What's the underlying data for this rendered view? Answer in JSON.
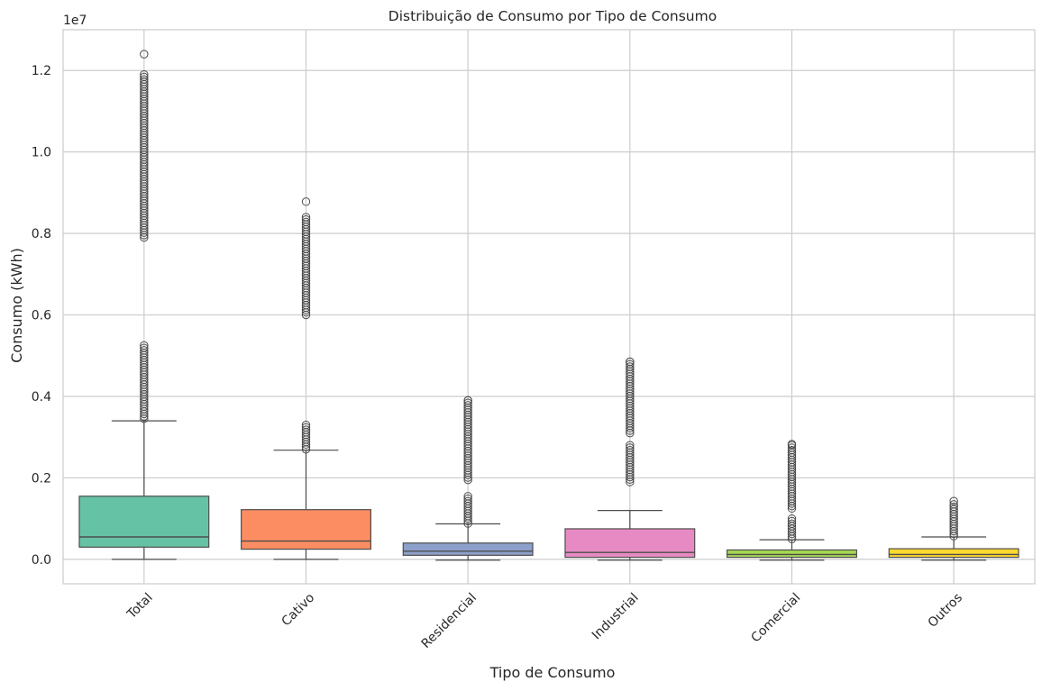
{
  "chart_data": {
    "type": "box",
    "title": "Distribuição de Consumo por Tipo de Consumo",
    "xlabel": "Tipo de Consumo",
    "ylabel": "Consumo (kWh)",
    "y_offset_label": "1e7",
    "ylim": [
      -0.06,
      1.3
    ],
    "y_scale_factor": 10000000,
    "y_ticks": [
      0.0,
      0.2,
      0.4,
      0.6,
      0.8,
      1.0,
      1.2
    ],
    "y_tick_labels": [
      "0.0",
      "0.2",
      "0.4",
      "0.6",
      "0.8",
      "1.0",
      "1.2"
    ],
    "grid": true,
    "x_tick_rotation": 45,
    "categories": [
      "Total",
      "Cativo",
      "Residencial",
      "Industrial",
      "Comercial",
      "Outros"
    ],
    "colors": [
      "#66c2a5",
      "#fc8d62",
      "#8da0cb",
      "#e78ac3",
      "#a6d854",
      "#ffd92f"
    ],
    "boxes": [
      {
        "name": "Total",
        "whisker_low": 0.0,
        "q1": 0.03,
        "median": 0.055,
        "q3": 0.155,
        "whisker_high": 0.34,
        "outlier_ranges": [
          [
            0.345,
            0.525
          ],
          [
            0.79,
            1.19
          ]
        ],
        "outlier_max": 1.24
      },
      {
        "name": "Cativo",
        "whisker_low": 0.0,
        "q1": 0.025,
        "median": 0.045,
        "q3": 0.122,
        "whisker_high": 0.268,
        "outlier_ranges": [
          [
            0.27,
            0.33
          ],
          [
            0.6,
            0.84
          ]
        ],
        "outlier_max": 0.878
      },
      {
        "name": "Residencial",
        "whisker_low": -0.002,
        "q1": 0.01,
        "median": 0.02,
        "q3": 0.04,
        "whisker_high": 0.087,
        "outlier_ranges": [
          [
            0.088,
            0.155
          ],
          [
            0.195,
            0.39
          ]
        ],
        "outlier_max": 0.39
      },
      {
        "name": "Industrial",
        "whisker_low": -0.002,
        "q1": 0.005,
        "median": 0.017,
        "q3": 0.075,
        "whisker_high": 0.12,
        "outlier_ranges": [
          [
            0.19,
            0.28
          ],
          [
            0.31,
            0.485
          ]
        ],
        "outlier_max": 0.485
      },
      {
        "name": "Comercial",
        "whisker_low": -0.002,
        "q1": 0.005,
        "median": 0.012,
        "q3": 0.023,
        "whisker_high": 0.048,
        "outlier_ranges": [
          [
            0.05,
            0.1
          ],
          [
            0.125,
            0.28
          ]
        ],
        "outlier_max": 0.283
      },
      {
        "name": "Outros",
        "whisker_low": -0.002,
        "q1": 0.005,
        "median": 0.012,
        "q3": 0.026,
        "whisker_high": 0.055,
        "outlier_ranges": [
          [
            0.057,
            0.135
          ]
        ],
        "outlier_max": 0.143
      }
    ]
  }
}
